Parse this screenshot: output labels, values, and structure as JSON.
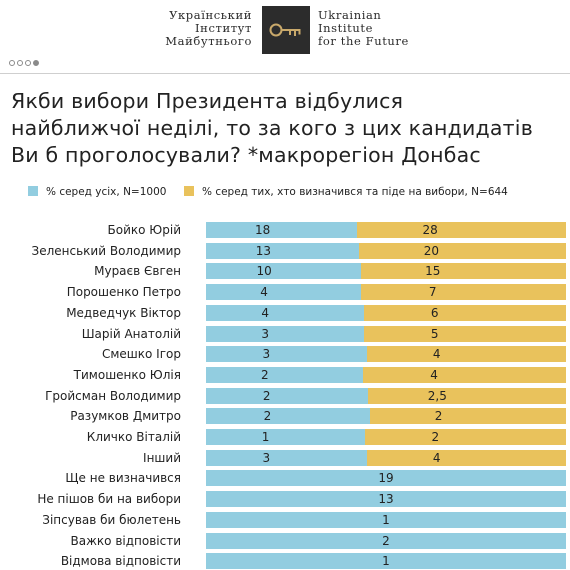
{
  "header": {
    "logo_left_lines": [
      "Український",
      "Інститут",
      "Майбутнього"
    ],
    "logo_right_lines": [
      "Ukrainian",
      "Institute",
      "for the Future"
    ],
    "logo_icon": "key-icon"
  },
  "pager": {
    "count": 4,
    "active_index": 3
  },
  "colors": {
    "all": "#92cde0",
    "decided": "#e9c25c",
    "logo": "#2c2c2c",
    "key": "#c9a96b"
  },
  "chart_data": {
    "type": "bar",
    "title_lines": [
      "Якби вибори Президента відбулися",
      "найближчої неділі, то за кого з цих кандидатів",
      "Ви б проголосували? *макрорегіон Донбас"
    ],
    "legend": {
      "all": "% серед усіх, N=1000",
      "decided": "% серед тих, хто визначився та піде на вибори, N=644"
    },
    "categories": [
      "Бойко Юрій",
      "Зеленський Володимир",
      "Мураєв Євген",
      "Порошенко Петро",
      "Медведчук Віктор",
      "Шарій Анатолій",
      "Смешко Ігор",
      "Тимошенко Юлія",
      "Гройсман Володимир",
      "Разумков Дмитро",
      "Кличко Віталій",
      "Інший",
      "Ще не визначився",
      "Не пішов би на вибори",
      "Зіпсував би бюлетень",
      "Важко відповісти",
      "Відмова відповісти"
    ],
    "series": [
      {
        "key": "all",
        "values": [
          18,
          13,
          10,
          4,
          4,
          3,
          3,
          2,
          2,
          2,
          1,
          3,
          19,
          13,
          1,
          2,
          1
        ],
        "labels": [
          "18",
          "13",
          "10",
          "4",
          "4",
          "3",
          "3",
          "2",
          "2",
          "2",
          "1",
          "3",
          "19",
          "13",
          "1",
          "2",
          "1"
        ]
      },
      {
        "key": "decided",
        "values": [
          28,
          20,
          15,
          7,
          6,
          5,
          4,
          4,
          2.5,
          2,
          2,
          4,
          null,
          null,
          null,
          null,
          null
        ],
        "labels": [
          "28",
          "20",
          "15",
          "7",
          "6",
          "5",
          "4",
          "4",
          "2,5",
          "2",
          "2",
          "4",
          "",
          "",
          "",
          "",
          ""
        ]
      }
    ]
  }
}
